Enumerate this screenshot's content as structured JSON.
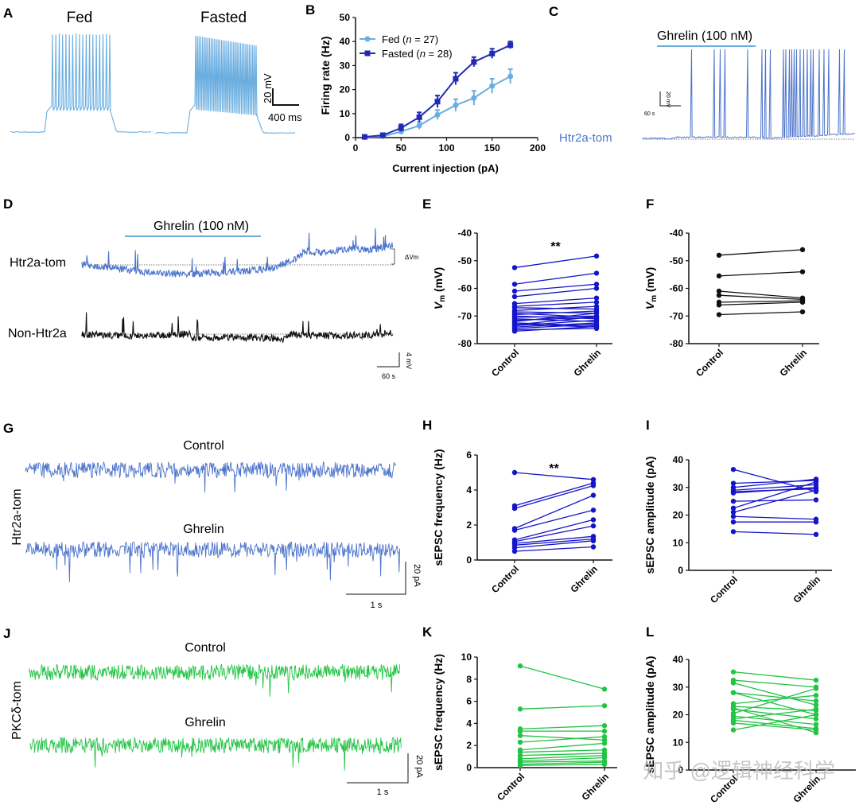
{
  "colors": {
    "fed": "#6aaee0",
    "fasted": "#1f2ab5",
    "htr": "#4c74cc",
    "dark": "#111111",
    "pair_blue": "#1414c8",
    "pair_black": "#111111",
    "green": "#22c444",
    "axis": "#111111",
    "watermark": "#bbbbbb"
  },
  "panels": {
    "A": {
      "letter": "A",
      "fed_label": "Fed",
      "fasted_label": "Fasted",
      "scale_v": "20 mV",
      "scale_t": "400 ms"
    },
    "C": {
      "letter": "C",
      "drug": "Ghrelin (100 nM)",
      "cell": "Htr2a-tom",
      "scale_v": "20 mV",
      "scale_t": "60 s"
    },
    "D": {
      "letter": "D",
      "drug": "Ghrelin (100 nM)",
      "trace1": "Htr2a-tom",
      "trace2": "Non-Htr2a",
      "dvm": "ΔVm",
      "scale_v": "4 mV",
      "scale_t": "60 s"
    },
    "G": {
      "letter": "G",
      "control": "Control",
      "ghrelin": "Ghrelin",
      "cell": "Htr2a-tom",
      "scale_i": "20 pA",
      "scale_t": "1 s"
    },
    "J": {
      "letter": "J",
      "control": "Control",
      "ghrelin": "Ghrelin",
      "cell": "PKCδ-tom",
      "scale_i": "20 pA",
      "scale_t": "1 s"
    }
  },
  "watermark": "知乎 @逻辑神经科学",
  "chart_data": [
    {
      "panel": "B",
      "type": "line",
      "title": "",
      "xlabel": "Current injection (pA)",
      "ylabel": "Firing rate (Hz)",
      "xlim": [
        0,
        200
      ],
      "ylim": [
        0,
        50
      ],
      "xticks": [
        0,
        50,
        100,
        150,
        200
      ],
      "yticks": [
        0,
        10,
        20,
        30,
        40,
        50
      ],
      "x": [
        10,
        30,
        50,
        70,
        90,
        110,
        130,
        150,
        170
      ],
      "series": [
        {
          "name": "Fed",
          "n_label": "n = 27",
          "legend": "Fed (n = 27)",
          "values": [
            0.2,
            0.5,
            2.5,
            5,
            9.5,
            13.5,
            16.5,
            21.5,
            25.5
          ],
          "err": [
            0.3,
            0.5,
            1,
            1.5,
            2,
            2.5,
            3,
            3,
            3
          ]
        },
        {
          "name": "Fasted",
          "n_label": "n = 28",
          "legend": "Fasted (n = 28)",
          "values": [
            0.3,
            1,
            4,
            8.5,
            15,
            24.5,
            31.5,
            35,
            38.5
          ],
          "err": [
            0.3,
            0.5,
            1.5,
            2,
            2.5,
            2.5,
            2,
            2,
            1.5
          ]
        }
      ]
    },
    {
      "panel": "E",
      "type": "paired",
      "ylabel": "Vm (mV)",
      "categories": [
        "Control",
        "Ghrelin"
      ],
      "ylim": [
        -80,
        -40
      ],
      "yticks": [
        -80,
        -70,
        -60,
        -50,
        -40
      ],
      "significance": "**",
      "pairs": [
        [
          -52.5,
          -48.3
        ],
        [
          -58.5,
          -54.5
        ],
        [
          -61,
          -58.5
        ],
        [
          -63,
          -60
        ],
        [
          -65.5,
          -63.5
        ],
        [
          -66.5,
          -65
        ],
        [
          -67,
          -67.5
        ],
        [
          -68,
          -66.5
        ],
        [
          -68.5,
          -69
        ],
        [
          -69,
          -70.5
        ],
        [
          -69.5,
          -68.2
        ],
        [
          -70,
          -71
        ],
        [
          -70.5,
          -70
        ],
        [
          -71,
          -72
        ],
        [
          -71.5,
          -70.5
        ],
        [
          -72,
          -69
        ],
        [
          -72.5,
          -73.5
        ],
        [
          -73,
          -74
        ],
        [
          -73.5,
          -71.5
        ],
        [
          -74,
          -72.5
        ],
        [
          -74.5,
          -73
        ],
        [
          -75,
          -74.5
        ],
        [
          -75.5,
          -73.8
        ],
        [
          -73.2,
          -70.2
        ]
      ]
    },
    {
      "panel": "F",
      "type": "paired",
      "ylabel": "Vm (mV)",
      "categories": [
        "Control",
        "Ghrelin"
      ],
      "ylim": [
        -80,
        -40
      ],
      "yticks": [
        -80,
        -70,
        -60,
        -50,
        -40
      ],
      "pairs": [
        [
          -48,
          -46
        ],
        [
          -55.5,
          -54
        ],
        [
          -61,
          -63.5
        ],
        [
          -62.5,
          -64
        ],
        [
          -65,
          -64.5
        ],
        [
          -66,
          -65
        ],
        [
          -69.5,
          -68.5
        ]
      ]
    },
    {
      "panel": "H",
      "type": "paired",
      "ylabel": "sEPSC frequency (Hz)",
      "categories": [
        "Control",
        "Ghrelin"
      ],
      "ylim": [
        0,
        6
      ],
      "yticks": [
        0,
        2,
        4,
        6
      ],
      "significance": "**",
      "pairs": [
        [
          5,
          4.6
        ],
        [
          3.1,
          4.4
        ],
        [
          2.95,
          4.25
        ],
        [
          1.8,
          3.7
        ],
        [
          1.7,
          2.85
        ],
        [
          1.15,
          2.3
        ],
        [
          1.05,
          1.95
        ],
        [
          0.95,
          1.35
        ],
        [
          0.85,
          1.2
        ],
        [
          0.7,
          1.1
        ],
        [
          0.5,
          0.75
        ]
      ]
    },
    {
      "panel": "I",
      "type": "paired",
      "ylabel": "sEPSC amplitude (pA)",
      "categories": [
        "Control",
        "Ghrelin"
      ],
      "ylim": [
        0,
        40
      ],
      "yticks": [
        0,
        10,
        20,
        30,
        40
      ],
      "pairs": [
        [
          36.5,
          28.5
        ],
        [
          31.5,
          32.5
        ],
        [
          30,
          33
        ],
        [
          29,
          31
        ],
        [
          28.5,
          29.5
        ],
        [
          28,
          30
        ],
        [
          25,
          25.5
        ],
        [
          22.5,
          32
        ],
        [
          21,
          29
        ],
        [
          19.5,
          18.5
        ],
        [
          17.5,
          17.5
        ],
        [
          14,
          13
        ]
      ]
    },
    {
      "panel": "K",
      "type": "paired",
      "ylabel": "sEPSC frequency (Hz)",
      "categories": [
        "Control",
        "Ghrelin"
      ],
      "ylim": [
        0,
        10
      ],
      "yticks": [
        0,
        2,
        4,
        6,
        8,
        10
      ],
      "pairs": [
        [
          9.2,
          7.1
        ],
        [
          5.3,
          5.6
        ],
        [
          3.5,
          3.8
        ],
        [
          3.3,
          3.3
        ],
        [
          2.9,
          2.5
        ],
        [
          2.3,
          2.8
        ],
        [
          1.6,
          2.2
        ],
        [
          1.4,
          1.6
        ],
        [
          1.1,
          1.3
        ],
        [
          0.8,
          1.1
        ],
        [
          0.6,
          0.9
        ],
        [
          0.5,
          0.6
        ],
        [
          0.3,
          0.5
        ],
        [
          0.2,
          0.3
        ]
      ]
    },
    {
      "panel": "L",
      "type": "paired",
      "ylabel": "sEPSC amplitude (pA)",
      "categories": [
        "Control",
        "Ghrelin"
      ],
      "ylim": [
        0,
        40
      ],
      "yticks": [
        0,
        10,
        20,
        30,
        40
      ],
      "pairs": [
        [
          35.5,
          32.5
        ],
        [
          32.5,
          30
        ],
        [
          31.5,
          23.5
        ],
        [
          28,
          25
        ],
        [
          28,
          20
        ],
        [
          24,
          27
        ],
        [
          23,
          21.5
        ],
        [
          22.5,
          13.5
        ],
        [
          22,
          18.5
        ],
        [
          20.5,
          29.5
        ],
        [
          19.5,
          16.5
        ],
        [
          18.5,
          22
        ],
        [
          18,
          15
        ],
        [
          17,
          14.5
        ],
        [
          14.5,
          20
        ]
      ]
    }
  ]
}
